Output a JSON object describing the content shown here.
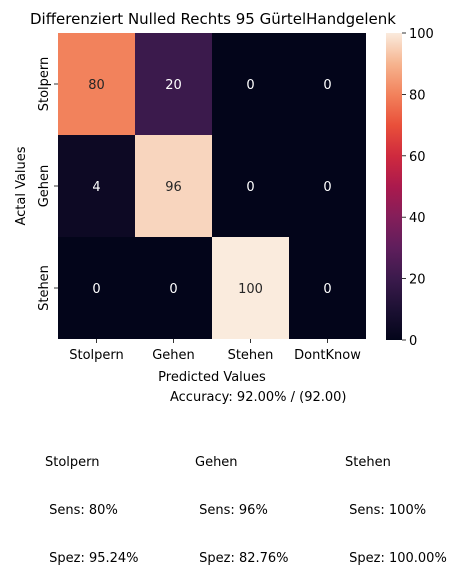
{
  "chart_data": {
    "type": "heatmap",
    "title": "Differenziert Nulled Rechts 95 GürtelHandgelenk",
    "xlabel": "Predicted Values",
    "ylabel": "Actal Values",
    "x_categories": [
      "Stolpern",
      "Gehen",
      "Stehen",
      "DontKnow"
    ],
    "y_categories": [
      "Stolpern",
      "Gehen",
      "Stehen"
    ],
    "values": [
      [
        80,
        20,
        0,
        0
      ],
      [
        4,
        96,
        0,
        0
      ],
      [
        0,
        0,
        100,
        0
      ]
    ],
    "colorbar": {
      "min": 0,
      "max": 100,
      "ticks": [
        0,
        20,
        40,
        60,
        80,
        100
      ]
    },
    "colormap": "rocket",
    "grid": false
  },
  "summary": {
    "accuracy": "Accuracy: 92.00% / (92.00)",
    "metrics": [
      {
        "name": "Stolpern",
        "sens": " Sens: 80%",
        "spez": " Spez: 95.24%"
      },
      {
        "name": "Gehen",
        "sens": " Sens: 96%",
        "spez": " Spez: 82.76%"
      },
      {
        "name": "Stehen",
        "sens": " Sens: 100%",
        "spez": " Spez: 100.00%"
      }
    ]
  }
}
